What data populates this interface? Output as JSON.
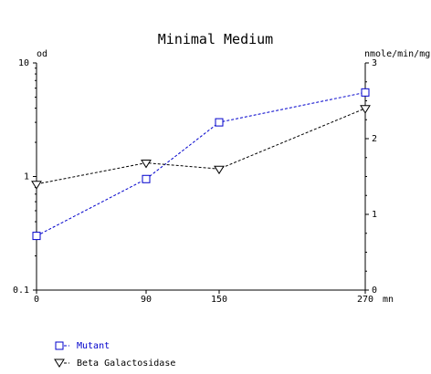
{
  "chart_data": {
    "type": "line",
    "title": "Minimal Medium",
    "xlabel": "mn",
    "x": [
      0,
      90,
      150,
      270
    ],
    "x_ticks": [
      "0",
      "90",
      "150",
      "270"
    ],
    "left_axis": {
      "label": "od",
      "scale": "log",
      "range": [
        0.1,
        10
      ],
      "ticks": [
        "10",
        "1",
        "0.1"
      ]
    },
    "right_axis": {
      "label": "nmole/min/mg",
      "scale": "linear",
      "range": [
        0,
        3
      ],
      "ticks": [
        "3",
        "2",
        "1",
        "0"
      ]
    },
    "grid": false,
    "legend_position": "bottom-left",
    "series": [
      {
        "name": "Mutant",
        "axis": "left",
        "values": [
          0.3,
          0.95,
          3.0,
          5.5
        ],
        "color": "#0000cc",
        "marker": "square",
        "line_style": "dashed"
      },
      {
        "name": "Beta Galactosidase",
        "axis": "right",
        "values": [
          1.4,
          1.68,
          1.6,
          2.4
        ],
        "color": "#000000",
        "marker": "triangle-down",
        "line_style": "dashed"
      }
    ]
  }
}
